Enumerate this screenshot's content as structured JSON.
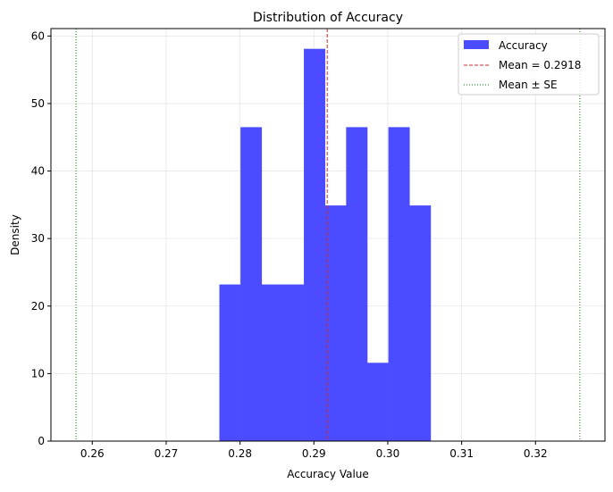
{
  "chart_data": {
    "type": "bar",
    "title": "Distribution of Accuracy",
    "xlabel": "Accuracy Value",
    "ylabel": "Density",
    "xlim": [
      0.2544,
      0.3294
    ],
    "ylim": [
      0,
      61.1
    ],
    "xticks": [
      0.26,
      0.27,
      0.28,
      0.29,
      0.3,
      0.31,
      0.32
    ],
    "xtick_labels": [
      "0.26",
      "0.27",
      "0.28",
      "0.29",
      "0.30",
      "0.31",
      "0.32"
    ],
    "yticks": [
      0,
      10,
      20,
      30,
      40,
      50,
      60
    ],
    "ytick_labels": [
      "0",
      "10",
      "20",
      "30",
      "40",
      "50",
      "60"
    ],
    "grid": true,
    "legend_position": "top-right",
    "histogram": {
      "name": "Accuracy",
      "color": "#4b4bff",
      "bin_edges": [
        0.2772,
        0.28006,
        0.28292,
        0.28578,
        0.28864,
        0.2915,
        0.29436,
        0.29722,
        0.30008,
        0.30294,
        0.3058
      ],
      "density": [
        23.2,
        46.5,
        23.2,
        23.2,
        58.1,
        34.9,
        46.5,
        11.6,
        46.5,
        34.9
      ]
    },
    "mean_line": {
      "name": "Mean = 0.2918",
      "value": 0.2918,
      "color": "#d62728",
      "style": "dashed"
    },
    "se_lines": {
      "name": "Mean ± SE",
      "values": [
        0.2578,
        0.326
      ],
      "color": "#008000",
      "style": "dotted"
    }
  }
}
